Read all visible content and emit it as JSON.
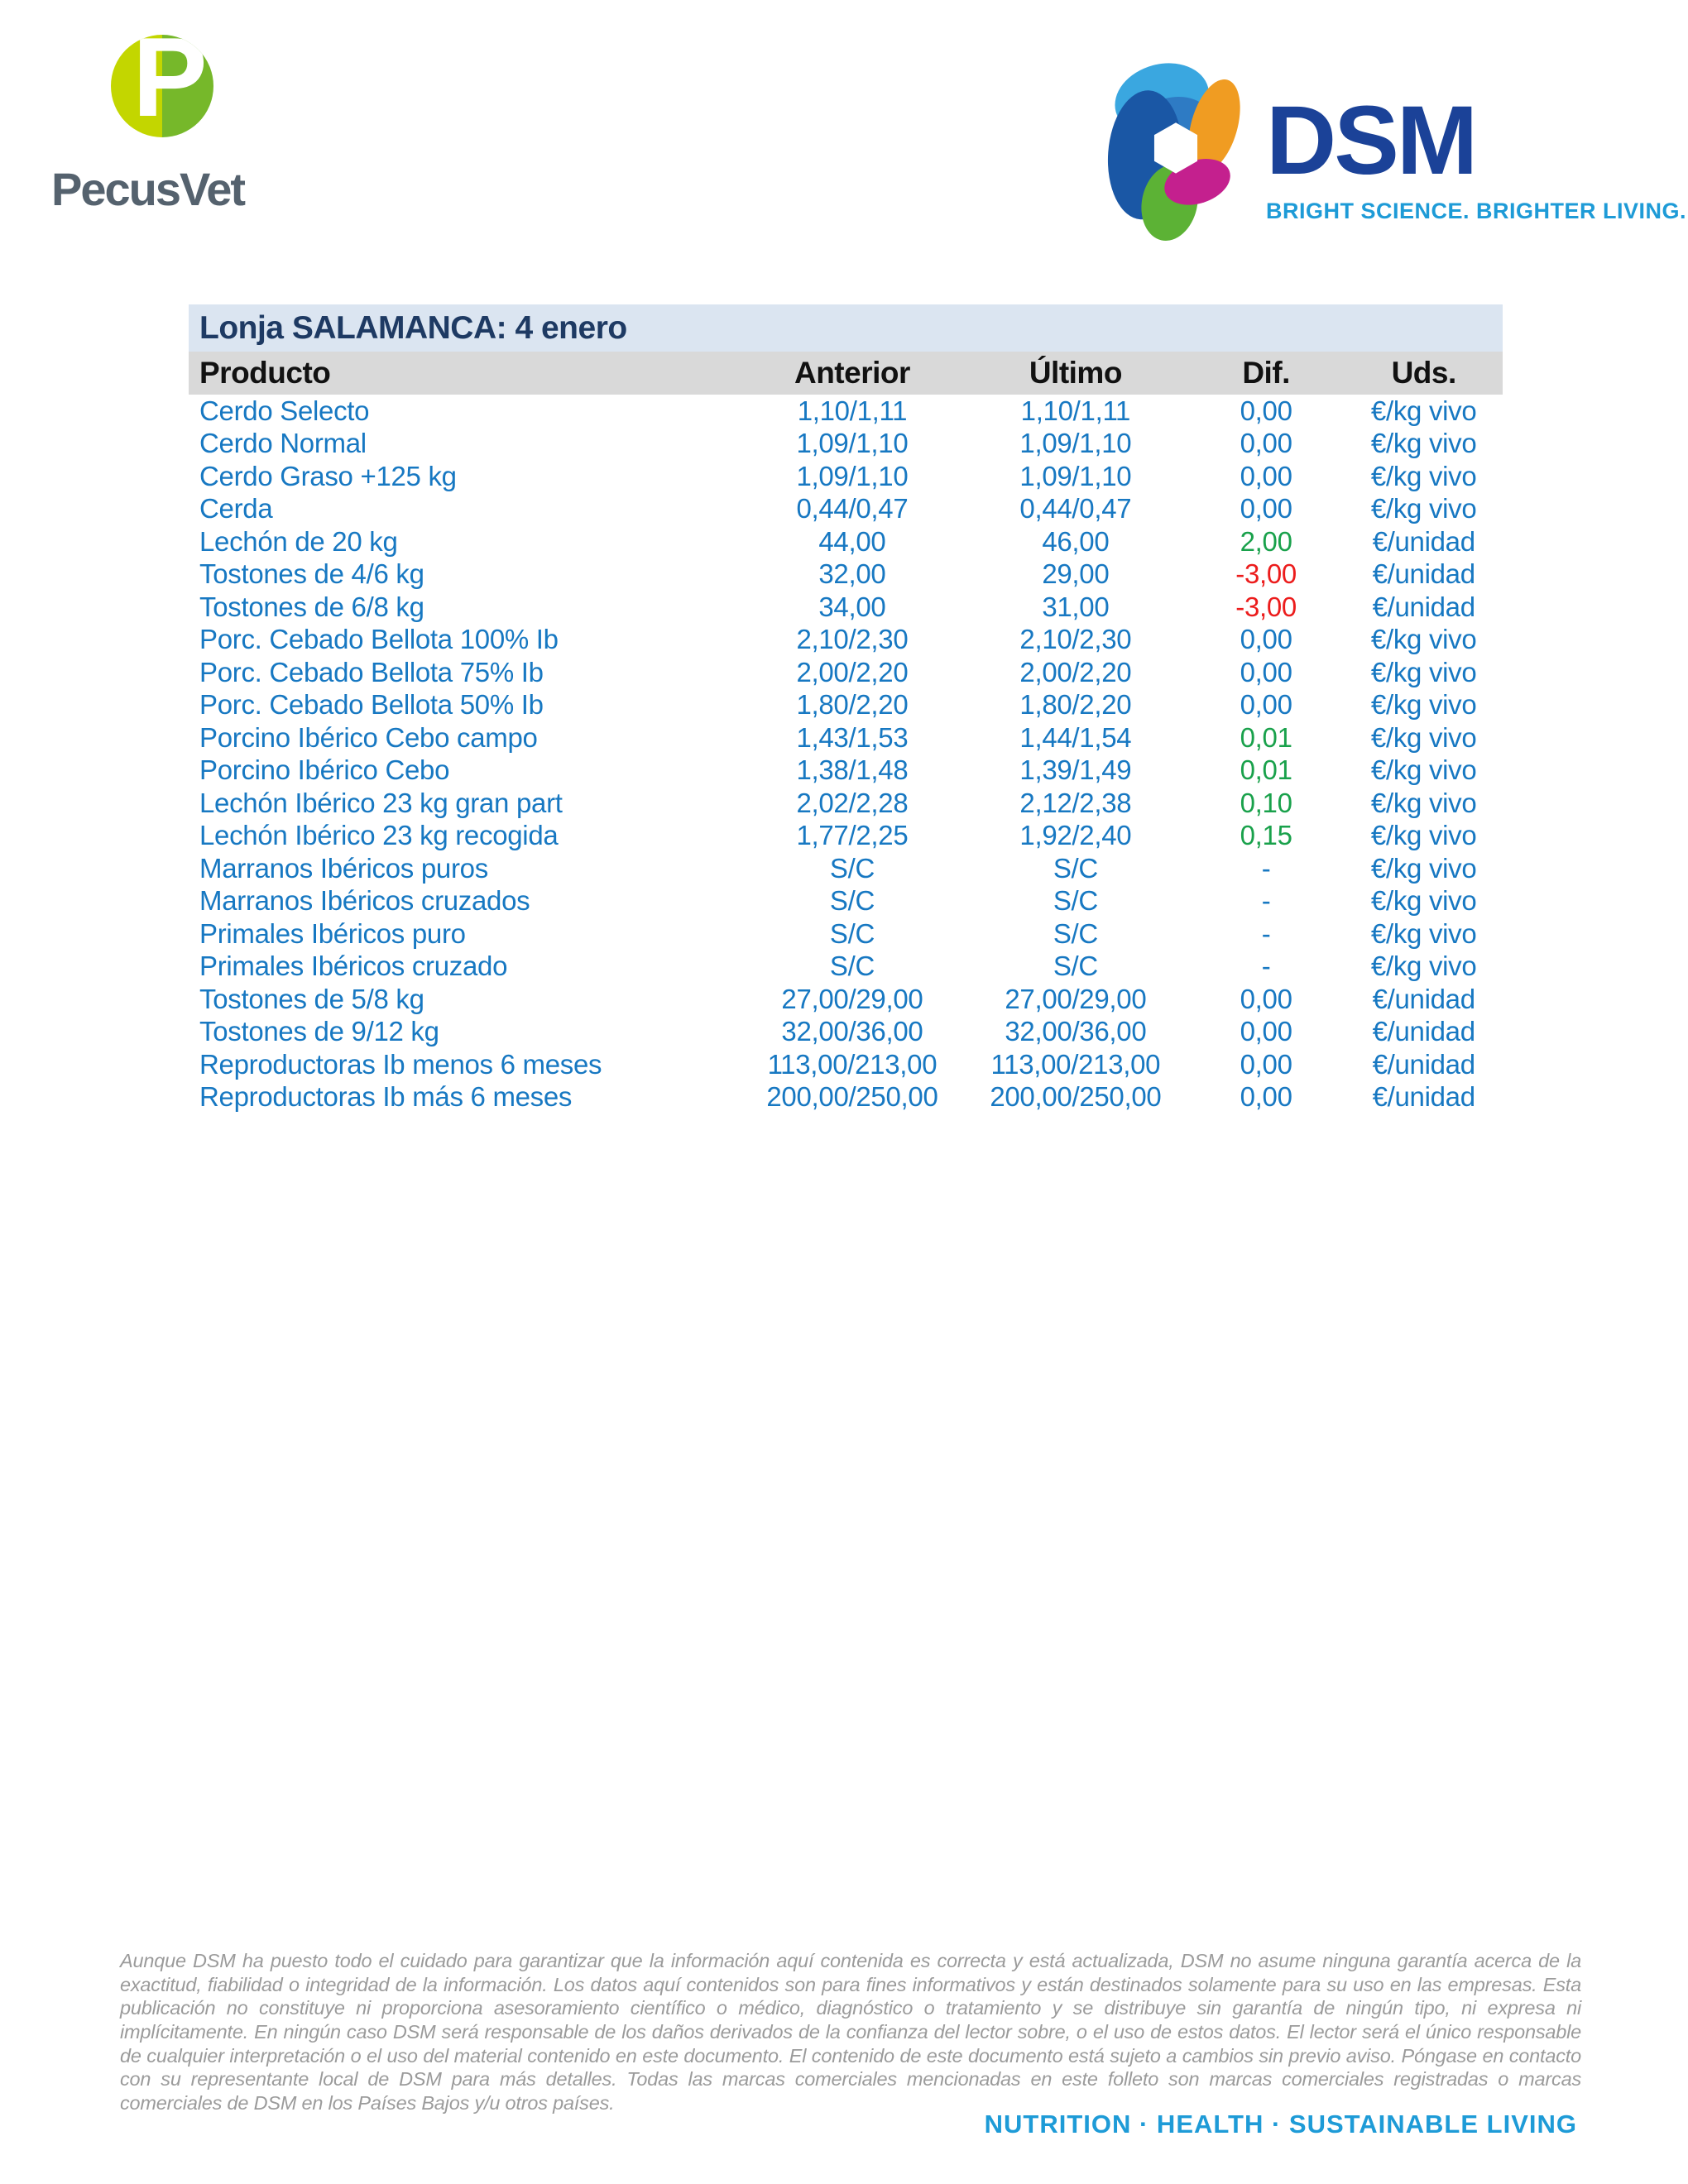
{
  "header": {
    "pecusvet": {
      "monogram": "P",
      "wordmark": "PecusVet"
    },
    "dsm": {
      "wordmark": "DSM",
      "tagline": "BRIGHT SCIENCE. BRIGHTER LIVING."
    }
  },
  "table": {
    "title": "Lonja SALAMANCA: 4 enero",
    "columns": {
      "producto": "Producto",
      "anterior": "Anterior",
      "ultimo": "Último",
      "dif": "Dif.",
      "uds": "Uds."
    },
    "rows": [
      {
        "producto": "Cerdo Selecto",
        "anterior": "1,10/1,11",
        "ultimo": "1,10/1,11",
        "dif": "0,00",
        "dif_state": "neutral",
        "uds": "€/kg vivo"
      },
      {
        "producto": "Cerdo Normal",
        "anterior": "1,09/1,10",
        "ultimo": "1,09/1,10",
        "dif": "0,00",
        "dif_state": "neutral",
        "uds": "€/kg vivo"
      },
      {
        "producto": "Cerdo Graso +125 kg",
        "anterior": "1,09/1,10",
        "ultimo": "1,09/1,10",
        "dif": "0,00",
        "dif_state": "neutral",
        "uds": "€/kg vivo"
      },
      {
        "producto": "Cerda",
        "anterior": "0,44/0,47",
        "ultimo": "0,44/0,47",
        "dif": "0,00",
        "dif_state": "neutral",
        "uds": "€/kg vivo"
      },
      {
        "producto": "Lechón de 20 kg",
        "anterior": "44,00",
        "ultimo": "46,00",
        "dif": "2,00",
        "dif_state": "up",
        "uds": "€/unidad"
      },
      {
        "producto": "Tostones de 4/6 kg",
        "anterior": "32,00",
        "ultimo": "29,00",
        "dif": "-3,00",
        "dif_state": "down",
        "uds": "€/unidad"
      },
      {
        "producto": "Tostones de 6/8 kg",
        "anterior": "34,00",
        "ultimo": "31,00",
        "dif": "-3,00",
        "dif_state": "down",
        "uds": "€/unidad"
      },
      {
        "producto": "Porc. Cebado Bellota 100% Ib",
        "anterior": "2,10/2,30",
        "ultimo": "2,10/2,30",
        "dif": "0,00",
        "dif_state": "neutral",
        "uds": "€/kg vivo"
      },
      {
        "producto": "Porc. Cebado Bellota 75% Ib",
        "anterior": "2,00/2,20",
        "ultimo": "2,00/2,20",
        "dif": "0,00",
        "dif_state": "neutral",
        "uds": "€/kg vivo"
      },
      {
        "producto": "Porc. Cebado Bellota 50% Ib",
        "anterior": "1,80/2,20",
        "ultimo": "1,80/2,20",
        "dif": "0,00",
        "dif_state": "neutral",
        "uds": "€/kg vivo"
      },
      {
        "producto": "Porcino Ibérico Cebo campo",
        "anterior": "1,43/1,53",
        "ultimo": "1,44/1,54",
        "dif": "0,01",
        "dif_state": "up",
        "uds": "€/kg vivo"
      },
      {
        "producto": "Porcino Ibérico Cebo",
        "anterior": "1,38/1,48",
        "ultimo": "1,39/1,49",
        "dif": "0,01",
        "dif_state": "up",
        "uds": "€/kg vivo"
      },
      {
        "producto": "Lechón Ibérico 23 kg gran part",
        "anterior": "2,02/2,28",
        "ultimo": "2,12/2,38",
        "dif": "0,10",
        "dif_state": "up",
        "uds": "€/kg vivo"
      },
      {
        "producto": "Lechón Ibérico 23 kg recogida",
        "anterior": "1,77/2,25",
        "ultimo": "1,92/2,40",
        "dif": "0,15",
        "dif_state": "up",
        "uds": "€/kg vivo"
      },
      {
        "producto": "Marranos Ibéricos puros",
        "anterior": "S/C",
        "ultimo": "S/C",
        "dif": "-",
        "dif_state": "none",
        "uds": "€/kg vivo"
      },
      {
        "producto": "Marranos Ibéricos cruzados",
        "anterior": "S/C",
        "ultimo": "S/C",
        "dif": "-",
        "dif_state": "none",
        "uds": "€/kg vivo"
      },
      {
        "producto": "Primales Ibéricos puro",
        "anterior": "S/C",
        "ultimo": "S/C",
        "dif": "-",
        "dif_state": "none",
        "uds": "€/kg vivo"
      },
      {
        "producto": "Primales Ibéricos cruzado",
        "anterior": "S/C",
        "ultimo": "S/C",
        "dif": "-",
        "dif_state": "none",
        "uds": "€/kg vivo"
      },
      {
        "producto": "Tostones de 5/8 kg",
        "anterior": "27,00/29,00",
        "ultimo": "27,00/29,00",
        "dif": "0,00",
        "dif_state": "neutral",
        "uds": "€/unidad"
      },
      {
        "producto": "Tostones de 9/12 kg",
        "anterior": "32,00/36,00",
        "ultimo": "32,00/36,00",
        "dif": "0,00",
        "dif_state": "neutral",
        "uds": "€/unidad"
      },
      {
        "producto": "Reproductoras Ib menos 6 meses",
        "anterior": "113,00/213,00",
        "ultimo": "113,00/213,00",
        "dif": "0,00",
        "dif_state": "neutral",
        "uds": "€/unidad"
      },
      {
        "producto": "Reproductoras Ib más 6 meses",
        "anterior": "200,00/250,00",
        "ultimo": "200,00/250,00",
        "dif": "0,00",
        "dif_state": "neutral",
        "uds": "€/unidad"
      }
    ]
  },
  "footer": {
    "disclaimer": "Aunque DSM ha puesto todo el cuidado para garantizar que la información aquí contenida es correcta y está actualizada, DSM no asume ninguna garantía acerca de la exactitud, fiabilidad o integridad de la información. Los datos aquí contenidos son para fines informativos y están destinados solamente para su uso en las empresas. Esta publicación no constituye ni proporciona asesoramiento científico o médico, diagnóstico o tratamiento y se distribuye sin garantía de ningún tipo, ni expresa ni implícitamente. En ningún caso DSM será responsable de los daños derivados de la confianza del lector sobre, o el uso de estos datos. El lector será el único responsable de cualquier interpretación o el uso del material contenido en este documento. El contenido de este documento está sujeto a cambios sin previo aviso. Póngase en contacto con su representante local de DSM para más detalles. Todas las marcas comerciales mencionadas en este folleto son marcas comerciales registradas o marcas comerciales de DSM en los Países Bajos y/u otros países.",
    "tagline": "NUTRITION · HEALTH · SUSTAINABLE LIVING"
  },
  "colors": {
    "table_title_bg": "#dbe5f1",
    "table_title_text": "#1e3a63",
    "header_bg": "#d9d9d9",
    "header_text": "#111111",
    "data_text": "#1778c2",
    "dif_up": "#19a14b",
    "dif_down": "#ec1c1c",
    "pecusvet_lime": "#c3d600",
    "pecusvet_green": "#76b82a",
    "pecusvet_gray": "#55626e",
    "dsm_blue": "#1b4298",
    "dsm_light_blue": "#1e9bd7",
    "disclaimer_gray": "#9b9b9b"
  }
}
